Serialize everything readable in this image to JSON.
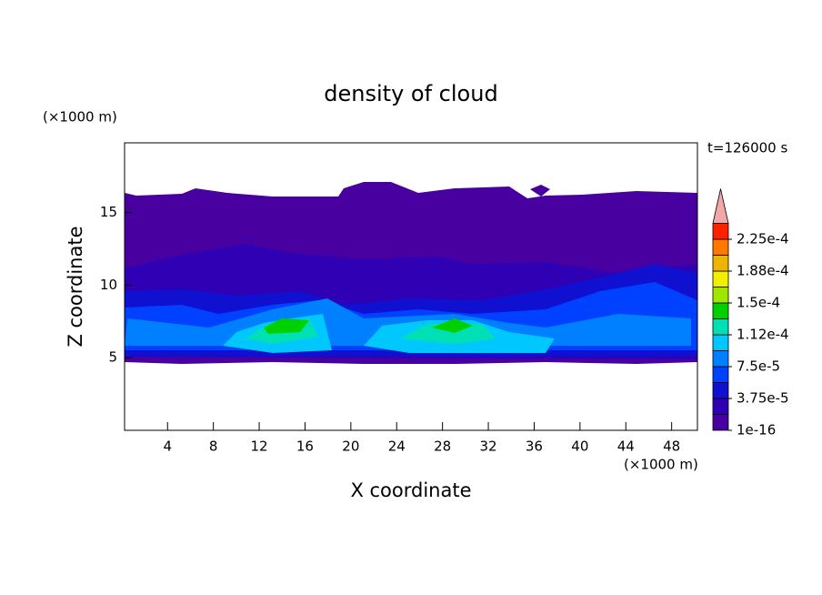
{
  "chart_data": {
    "type": "contour",
    "title": "density of cloud",
    "x_label": "X coordinate",
    "y_label": "Z coordinate",
    "x_unit": "(×1000 m)",
    "y_unit": "(×1000 m)",
    "time_label": "t=126000 s",
    "xlim": [
      0.25,
      50.25
    ],
    "xticks": [
      4,
      8,
      12,
      16,
      20,
      24,
      28,
      32,
      36,
      40,
      44,
      48
    ],
    "ylim": [
      0,
      19.8
    ],
    "yticks": [
      5,
      10,
      15
    ],
    "colorbar": {
      "clim": [
        1e-16,
        0.00024375
      ],
      "levels": [
        1e-16,
        1.875e-05,
        3.75e-05,
        5.625e-05,
        7.5e-05,
        9.375e-05,
        0.0001125,
        0.00013125,
        0.00015,
        0.00016875,
        0.0001875,
        0.00020625,
        0.000225
      ],
      "colors": [
        "#4800a0",
        "#3000b4",
        "#1010d0",
        "#0040ff",
        "#0080ff",
        "#00c8ff",
        "#00e0b4",
        "#00d000",
        "#a0e600",
        "#f0f000",
        "#f0b400",
        "#ff7800",
        "#ff2000"
      ],
      "extend_color": "#f0a8a8",
      "ticks": [
        {
          "value": 1e-16,
          "label": "1e-16"
        },
        {
          "value": 3.75e-05,
          "label": "3.75e-5"
        },
        {
          "value": 7.5e-05,
          "label": "7.5e-5"
        },
        {
          "value": 0.0001125,
          "label": "1.12e-4"
        },
        {
          "value": 0.00015,
          "label": "1.5e-4"
        },
        {
          "value": 0.0001875,
          "label": "1.88e-4"
        },
        {
          "value": 0.000225,
          "label": "2.25e-4"
        }
      ]
    }
  }
}
